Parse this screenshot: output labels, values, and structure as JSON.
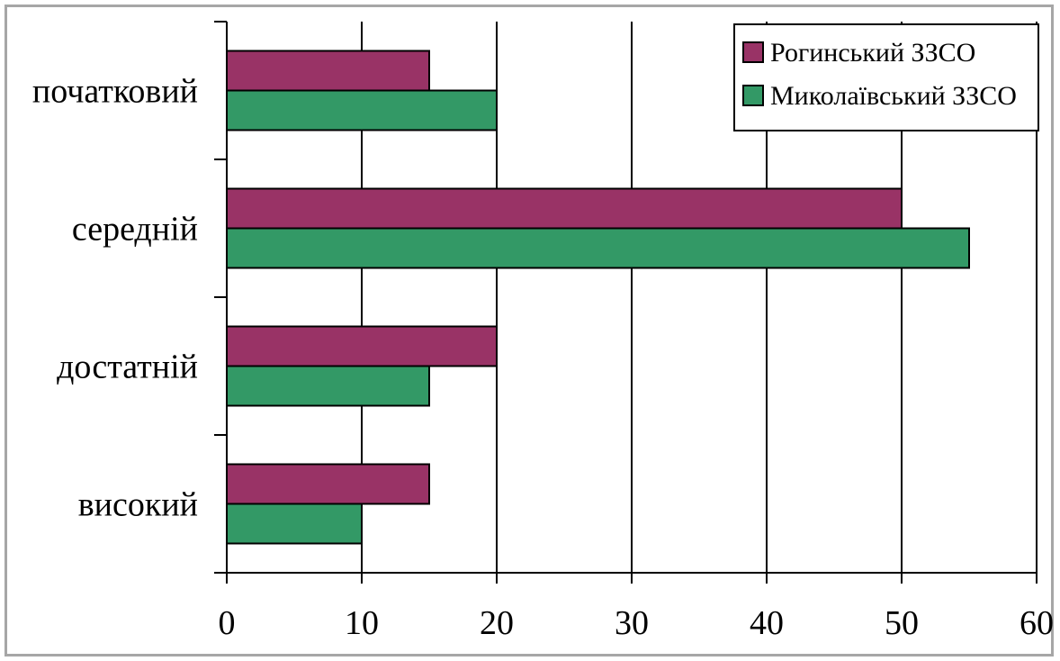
{
  "chart_data": {
    "type": "bar",
    "orientation": "horizontal",
    "categories": [
      "високий",
      "достатній",
      "середній",
      "початковий"
    ],
    "series": [
      {
        "name": "Рогинський ЗЗСО",
        "color": "#993366",
        "values": [
          15,
          20,
          50,
          15
        ]
      },
      {
        "name": "Миколаївський ЗЗСО",
        "color": "#339966",
        "values": [
          10,
          15,
          55,
          20
        ]
      }
    ],
    "xlim": [
      0,
      60
    ],
    "xticks": [
      "0",
      "10",
      "20",
      "30",
      "40",
      "50",
      "60"
    ],
    "grid": true,
    "legend": "top-right"
  }
}
